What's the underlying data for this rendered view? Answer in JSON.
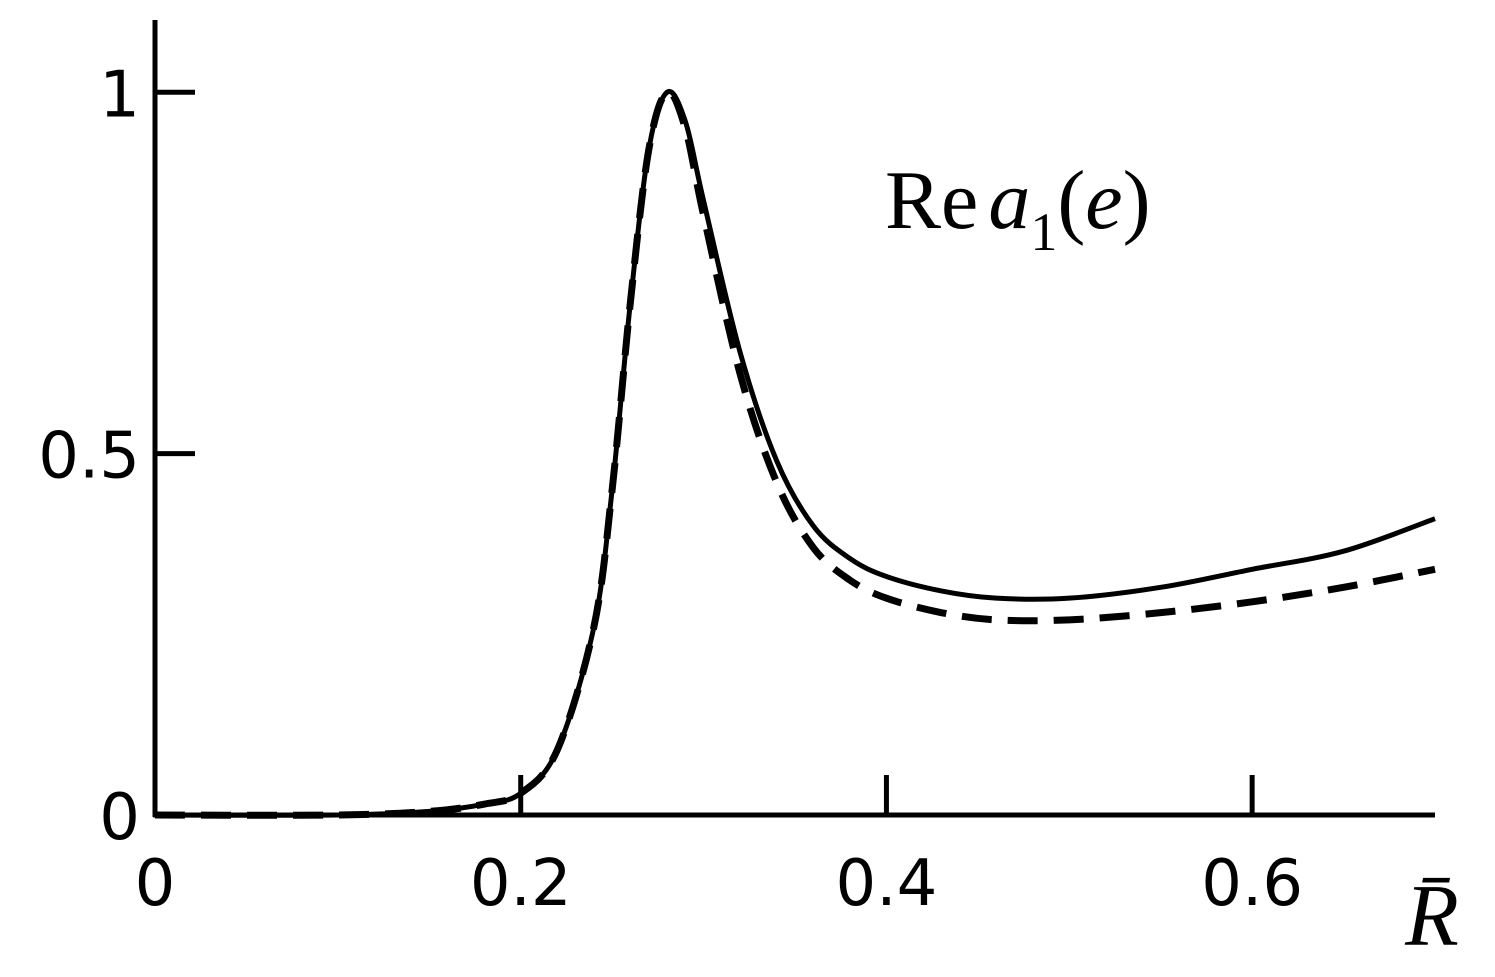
{
  "chart_data": {
    "type": "line",
    "title": "",
    "xlabel": "R̄",
    "ylabel": "",
    "xlim": [
      0,
      0.7
    ],
    "ylim": [
      0,
      1.1
    ],
    "x_ticks": [
      0,
      0.2,
      0.4,
      0.6
    ],
    "x_tick_labels": [
      "0",
      "0.2",
      "0.4",
      "0.6"
    ],
    "y_ticks": [
      0,
      0.5,
      1
    ],
    "y_tick_labels": [
      "0",
      "0.5",
      "1"
    ],
    "grid": false,
    "legend": "none",
    "annotation": {
      "re": "Re",
      "a": "a",
      "sub": "1",
      "open": "(",
      "e": "e",
      "close": ")"
    },
    "series": [
      {
        "style": "solid",
        "color": "#000000",
        "x": [
          0,
          0.1,
          0.15,
          0.18,
          0.2,
          0.22,
          0.24,
          0.25,
          0.26,
          0.27,
          0.28,
          0.29,
          0.3,
          0.32,
          0.34,
          0.36,
          0.38,
          0.4,
          0.43,
          0.46,
          0.5,
          0.55,
          0.6,
          0.65,
          0.7
        ],
        "y": [
          0,
          0,
          0.005,
          0.015,
          0.03,
          0.09,
          0.26,
          0.45,
          0.71,
          0.92,
          1.0,
          0.96,
          0.85,
          0.64,
          0.49,
          0.4,
          0.355,
          0.33,
          0.31,
          0.3,
          0.3,
          0.315,
          0.34,
          0.365,
          0.41
        ]
      },
      {
        "style": "dashed",
        "color": "#000000",
        "x": [
          0,
          0.1,
          0.15,
          0.18,
          0.2,
          0.22,
          0.24,
          0.25,
          0.26,
          0.27,
          0.28,
          0.29,
          0.3,
          0.32,
          0.34,
          0.36,
          0.38,
          0.4,
          0.43,
          0.46,
          0.5,
          0.55,
          0.6,
          0.65,
          0.7
        ],
        "y": [
          0,
          0,
          0.005,
          0.015,
          0.03,
          0.09,
          0.26,
          0.45,
          0.71,
          0.92,
          1.0,
          0.95,
          0.83,
          0.61,
          0.46,
          0.37,
          0.325,
          0.3,
          0.28,
          0.27,
          0.27,
          0.28,
          0.295,
          0.315,
          0.34
        ]
      }
    ]
  }
}
